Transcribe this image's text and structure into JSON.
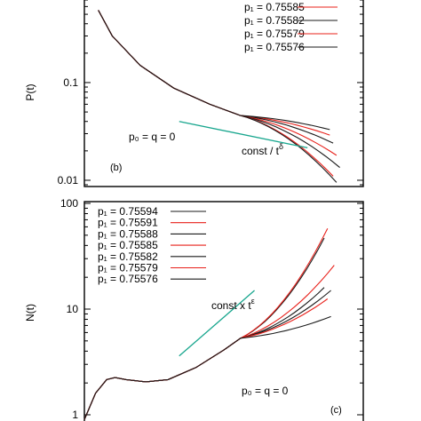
{
  "colors": {
    "black": "#1a1a1a",
    "red": "#e8201a",
    "teal": "#18a68e"
  },
  "chart_data": [
    {
      "type": "line",
      "panel": "(b)",
      "ylabel": "P(t)",
      "xlabel": "",
      "yscale": "log",
      "ylim": [
        0.009,
        0.7
      ],
      "ytick_labels": [
        "0.01",
        "0.1"
      ],
      "ytick_values": [
        0.01,
        0.1
      ],
      "legend_placement": "top-right",
      "annotation_params": "p₀ = q = 0",
      "annotation_slope": "const / t",
      "annotation_slope_exp": "δ",
      "series": [
        {
          "name": "p₁ = 0.75585",
          "color": "red",
          "end": 0.029
        },
        {
          "name": "p₁ = 0.75582",
          "color": "black",
          "end": 0.024
        },
        {
          "name": "p₁ = 0.75579",
          "color": "red",
          "end": 0.018
        },
        {
          "name": "p₁ = 0.75576",
          "color": "black",
          "end": 0.0135
        },
        {
          "name": "",
          "color": "black",
          "end": 0.033
        },
        {
          "name": "",
          "color": "red",
          "end": 0.011
        },
        {
          "name": "",
          "color": "black",
          "end": 0.0095
        }
      ],
      "common_curve": [
        [
          0.05,
          0.55
        ],
        [
          0.1,
          0.3
        ],
        [
          0.2,
          0.15
        ],
        [
          0.32,
          0.088
        ],
        [
          0.45,
          0.06
        ],
        [
          0.56,
          0.046
        ]
      ],
      "spread_start": 0.56,
      "guide": [
        [
          0.34,
          0.04
        ],
        [
          0.8,
          0.0215
        ]
      ]
    },
    {
      "type": "line",
      "panel": "(c)",
      "ylabel": "N(t)",
      "xlabel": "",
      "yscale": "log",
      "ylim": [
        1,
        100
      ],
      "ytick_labels": [
        "1",
        "10",
        "100"
      ],
      "ytick_values": [
        1,
        10,
        100
      ],
      "legend_placement": "top-left",
      "annotation_params": "p₀ = q = 0",
      "annotation_slope": "const x t",
      "annotation_slope_exp": "ε",
      "series": [
        {
          "name": "p₁ = 0.75594",
          "color": "black",
          "end": 47
        },
        {
          "name": "p₁ = 0.75591",
          "color": "red",
          "end": 58
        },
        {
          "name": "p₁ = 0.75588",
          "color": "black",
          "end": 15
        },
        {
          "name": "p₁ = 0.75585",
          "color": "red",
          "end": 26
        },
        {
          "name": "p₁ = 0.75582",
          "color": "black",
          "end": 16
        },
        {
          "name": "p₁ = 0.75579",
          "color": "red",
          "end": 12.5
        },
        {
          "name": "p₁ = 0.75576",
          "color": "black",
          "end": 8.5
        }
      ],
      "common_curve": [
        [
          0.0,
          0.9
        ],
        [
          0.04,
          1.6
        ],
        [
          0.08,
          2.15
        ],
        [
          0.11,
          2.25
        ],
        [
          0.15,
          2.15
        ],
        [
          0.22,
          2.05
        ],
        [
          0.3,
          2.15
        ],
        [
          0.4,
          2.8
        ],
        [
          0.5,
          4.1
        ],
        [
          0.56,
          5.3
        ]
      ],
      "spread_start": 0.56,
      "guide": [
        [
          0.34,
          3.6
        ],
        [
          0.61,
          15
        ]
      ]
    }
  ]
}
